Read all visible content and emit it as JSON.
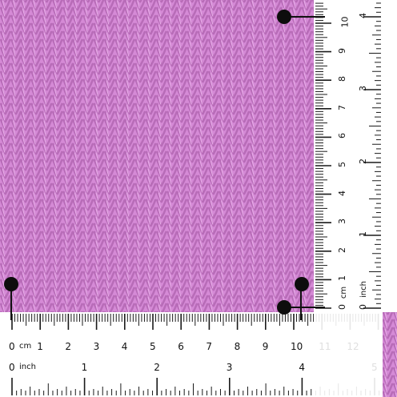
{
  "photo": {
    "subject": "knitted swatch",
    "yarn_color": "#d58ad6",
    "pin_count": 4
  },
  "ruler_horizontal": {
    "cm_unit": "cm",
    "cm_ticks": [
      "0",
      "1",
      "2",
      "3",
      "4",
      "5",
      "6",
      "7",
      "8",
      "9",
      "10",
      "11",
      "12"
    ],
    "inch_unit": "inch",
    "inch_ticks": [
      "0",
      "1",
      "2",
      "3",
      "4",
      "5"
    ]
  },
  "ruler_vertical": {
    "cm_unit": "cm",
    "cm_ticks": [
      "0",
      "1",
      "2",
      "3",
      "4",
      "5",
      "6",
      "7",
      "8",
      "9",
      "10"
    ],
    "inch_unit": "inch",
    "inch_ticks": [
      "0",
      "1",
      "2",
      "3",
      "4"
    ]
  }
}
